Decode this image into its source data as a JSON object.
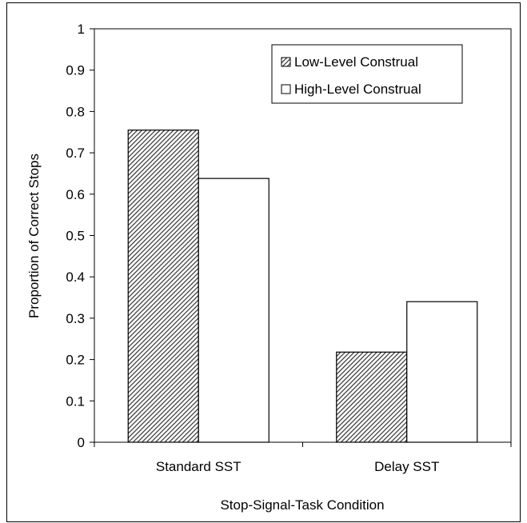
{
  "chart_data": {
    "type": "bar",
    "title": "",
    "xlabel": "Stop-Signal-Task Condition",
    "ylabel": "Proportion of Correct Stops",
    "ylim": [
      0,
      1
    ],
    "yticks": [
      "0",
      "0.1",
      "0.2",
      "0.3",
      "0.4",
      "0.5",
      "0.6",
      "0.7",
      "0.8",
      "0.9",
      "1"
    ],
    "categories": [
      "Standard SST",
      "Delay SST"
    ],
    "series": [
      {
        "name": "Low-Level Construal",
        "values": [
          0.755,
          0.218
        ],
        "fill": "hatched"
      },
      {
        "name": "High-Level Construal",
        "values": [
          0.638,
          0.34
        ],
        "fill": "#ffffff"
      }
    ],
    "legend_position": "top-right",
    "grid": false,
    "colors": {
      "bar_stroke": "#000000",
      "hatch_line": "#333333",
      "background": "#ffffff"
    }
  }
}
